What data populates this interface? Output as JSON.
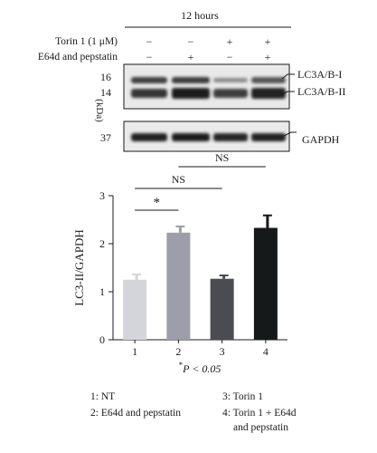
{
  "blot": {
    "time_label": "12 hours",
    "row_labels": [
      "Torin 1 (1 μM)",
      "E64d and pepstatin"
    ],
    "treatment_signs": [
      [
        "−",
        "−",
        "+",
        "+"
      ],
      [
        "−",
        "+",
        "−",
        "+"
      ]
    ],
    "kda_label": "(kDa)",
    "kda_markers": [
      "16",
      "14",
      "37"
    ],
    "band_labels": [
      "LC3A/B-I",
      "LC3A/B-II",
      "GAPDH"
    ]
  },
  "chart_data": {
    "type": "bar",
    "categories": [
      "1",
      "2",
      "3",
      "4"
    ],
    "values": [
      1.25,
      2.23,
      1.27,
      2.33
    ],
    "errors": [
      0.11,
      0.13,
      0.07,
      0.26
    ],
    "ylabel": "LC3-II/GAPDH",
    "ylim": [
      0,
      3
    ],
    "yticks": [
      "0",
      "1",
      "2",
      "3"
    ],
    "bar_colors": [
      "#d4d5da",
      "#9d9ea9",
      "#4a4c52",
      "#16191a"
    ],
    "significance": [
      {
        "label": "*",
        "from": "1",
        "to": "2"
      },
      {
        "label": "NS",
        "from": "1",
        "to": "3"
      },
      {
        "label": "NS",
        "from": "2",
        "to": "4"
      }
    ],
    "footnote_star": "*",
    "footnote_text": "P < 0.05"
  },
  "legend": {
    "items": [
      "1: NT",
      "3: Torin 1",
      "2: E64d and pepstatin",
      "4: Torin 1 + E64d",
      "and pepstatin"
    ]
  }
}
